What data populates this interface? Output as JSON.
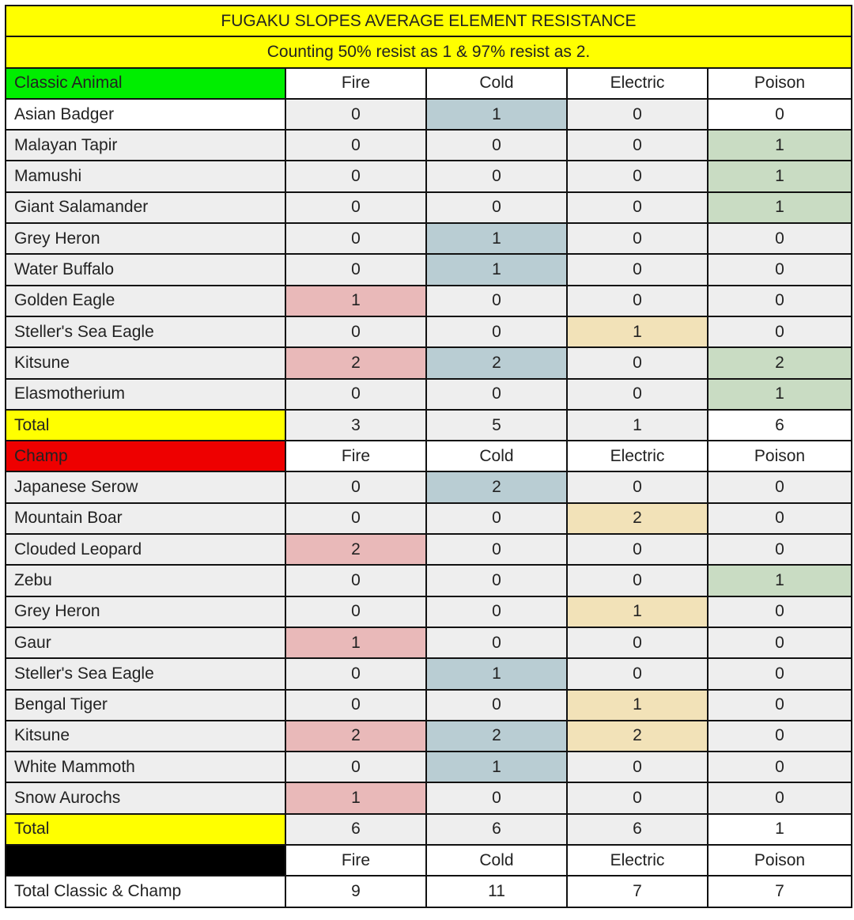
{
  "title": "FUGAKU SLOPES AVERAGE ELEMENT RESISTANCE",
  "subtitle": "Counting 50% resist as 1 & 97% resist as 2.",
  "columns": [
    "Fire",
    "Cold",
    "Electric",
    "Poison"
  ],
  "colors": {
    "banner": "#ffff00",
    "classic_header": "#00ee00",
    "champ_header": "#ee0000",
    "total_label": "#ffff00",
    "final_header": "#000000",
    "Fire": "#e9b9b9",
    "Cold": "#b9cdd3",
    "Electric": "#f2e2b8",
    "Poison": "#c9dcc3"
  },
  "sections": [
    {
      "header": "Classic Animal",
      "rows": [
        {
          "name": "Asian Badger",
          "values": [
            0,
            1,
            0,
            0
          ]
        },
        {
          "name": "Malayan Tapir",
          "values": [
            0,
            0,
            0,
            1
          ]
        },
        {
          "name": "Mamushi",
          "values": [
            0,
            0,
            0,
            1
          ]
        },
        {
          "name": "Giant Salamander",
          "values": [
            0,
            0,
            0,
            1
          ]
        },
        {
          "name": "Grey Heron",
          "values": [
            0,
            1,
            0,
            0
          ]
        },
        {
          "name": "Water Buffalo",
          "values": [
            0,
            1,
            0,
            0
          ]
        },
        {
          "name": "Golden Eagle",
          "values": [
            1,
            0,
            0,
            0
          ]
        },
        {
          "name": "Steller's Sea Eagle",
          "values": [
            0,
            0,
            1,
            0
          ]
        },
        {
          "name": "Kitsune",
          "values": [
            2,
            2,
            0,
            2
          ]
        },
        {
          "name": "Elasmotherium",
          "values": [
            0,
            0,
            0,
            1
          ]
        }
      ],
      "total_label": "Total",
      "totals": [
        3,
        5,
        1,
        6
      ]
    },
    {
      "header": "Champ",
      "rows": [
        {
          "name": "Japanese Serow",
          "values": [
            0,
            2,
            0,
            0
          ]
        },
        {
          "name": "Mountain Boar",
          "values": [
            0,
            0,
            2,
            0
          ]
        },
        {
          "name": "Clouded Leopard",
          "values": [
            2,
            0,
            0,
            0
          ]
        },
        {
          "name": "Zebu",
          "values": [
            0,
            0,
            0,
            1
          ]
        },
        {
          "name": "Grey Heron",
          "values": [
            0,
            0,
            1,
            0
          ]
        },
        {
          "name": "Gaur",
          "values": [
            1,
            0,
            0,
            0
          ]
        },
        {
          "name": "Steller's Sea Eagle",
          "values": [
            0,
            1,
            0,
            0
          ]
        },
        {
          "name": "Bengal Tiger",
          "values": [
            0,
            0,
            1,
            0
          ]
        },
        {
          "name": "Kitsune",
          "values": [
            2,
            2,
            2,
            0
          ]
        },
        {
          "name": "White Mammoth",
          "values": [
            0,
            1,
            0,
            0
          ]
        },
        {
          "name": "Snow Aurochs",
          "values": [
            1,
            0,
            0,
            0
          ]
        }
      ],
      "total_label": "Total",
      "totals": [
        6,
        6,
        6,
        1
      ]
    }
  ],
  "grand_total": {
    "label": "Total Classic & Champ",
    "values": [
      9,
      11,
      7,
      7
    ]
  }
}
